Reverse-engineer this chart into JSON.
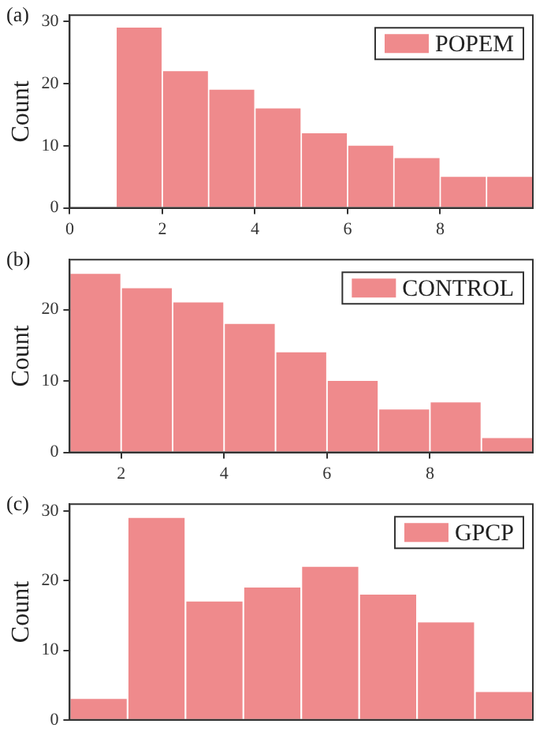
{
  "chart_data": [
    {
      "type": "histogram",
      "annotations": [
        "(a)"
      ],
      "ylabel": "Count",
      "bins": [
        1,
        2,
        3,
        4,
        5,
        6,
        7,
        8,
        9,
        10
      ],
      "xlim": [
        0,
        10
      ],
      "xticks": [
        0,
        2,
        4,
        6,
        8
      ],
      "ylim": [
        0,
        31
      ],
      "yticks": [
        0,
        10,
        20,
        30
      ],
      "grid": false,
      "legend": "top right",
      "series": [
        {
          "name": "POPEM",
          "color": "#ef8a8c",
          "values": [
            29,
            22,
            19,
            16,
            12,
            10,
            8,
            5,
            5
          ]
        }
      ]
    },
    {
      "type": "histogram",
      "annotations": [
        "(b)"
      ],
      "ylabel": "Count",
      "bins": [
        1,
        2,
        3,
        4,
        5,
        6,
        7,
        8,
        9,
        10
      ],
      "xlim": [
        1,
        10
      ],
      "xticks": [
        2,
        4,
        6,
        8
      ],
      "ylim": [
        0,
        27
      ],
      "yticks": [
        0,
        10,
        20
      ],
      "grid": false,
      "legend": "top right",
      "series": [
        {
          "name": "CONTROL",
          "color": "#ef8a8c",
          "values": [
            25,
            23,
            21,
            18,
            14,
            10,
            6,
            7,
            2
          ]
        }
      ]
    },
    {
      "type": "bar",
      "annotations": [
        "(c)"
      ],
      "ylabel": "Count",
      "categories": [
        null,
        null,
        null,
        null,
        null,
        null,
        null,
        null
      ],
      "ylim": [
        0,
        31
      ],
      "yticks": [
        0,
        10,
        20,
        30
      ],
      "grid": false,
      "legend": "top right",
      "tick_labels": "y",
      "series": [
        {
          "name": "GPCP",
          "color": "#ef8a8c",
          "values": [
            3,
            29,
            17,
            19,
            22,
            18,
            14,
            4
          ]
        }
      ]
    }
  ]
}
